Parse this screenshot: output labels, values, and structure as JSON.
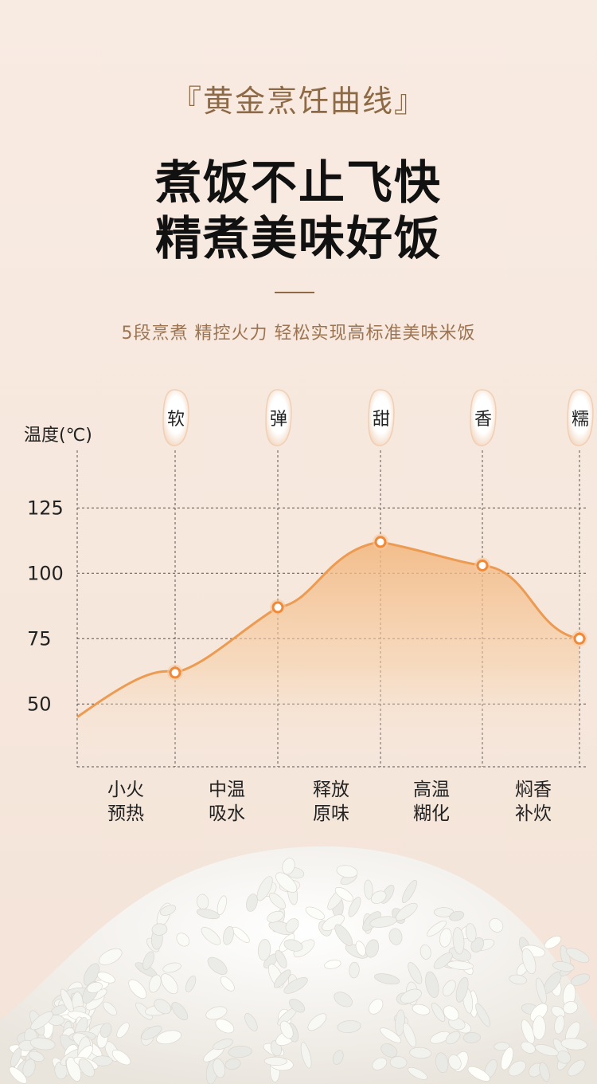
{
  "header": {
    "tagline": "『黄金烹饪曲线』",
    "headline_line1": "煮饭不止飞快",
    "headline_line2": "精煮美味好饭",
    "subtitle": "5段烹煮  精控火力  轻松实现高标准美味米饭"
  },
  "chart_data": {
    "type": "area",
    "ylabel": "温度(℃)",
    "yticks": [
      125,
      100,
      75,
      50
    ],
    "ylim": [
      25,
      140
    ],
    "grid": true,
    "stage_labels": [
      [
        "小火",
        "预热"
      ],
      [
        "中温",
        "吸水"
      ],
      [
        "释放",
        "原味"
      ],
      [
        "高温",
        "糊化"
      ],
      [
        "焖香",
        "补炊"
      ]
    ],
    "markers": [
      "软",
      "弹",
      "甜",
      "香",
      "糯"
    ],
    "points": [
      {
        "marker": "软",
        "y": 62
      },
      {
        "marker": "弹",
        "y": 87
      },
      {
        "marker": "甜",
        "y": 112
      },
      {
        "marker": "香",
        "y": 103
      },
      {
        "marker": "糯",
        "y": 75
      }
    ],
    "curve_start_y": 45,
    "colors": {
      "line": "#ec9b52",
      "fill_top": "#f2b57c",
      "point_fill": "#ffffff",
      "point_stroke": "#ef8a3a",
      "grid": "#555555"
    }
  }
}
